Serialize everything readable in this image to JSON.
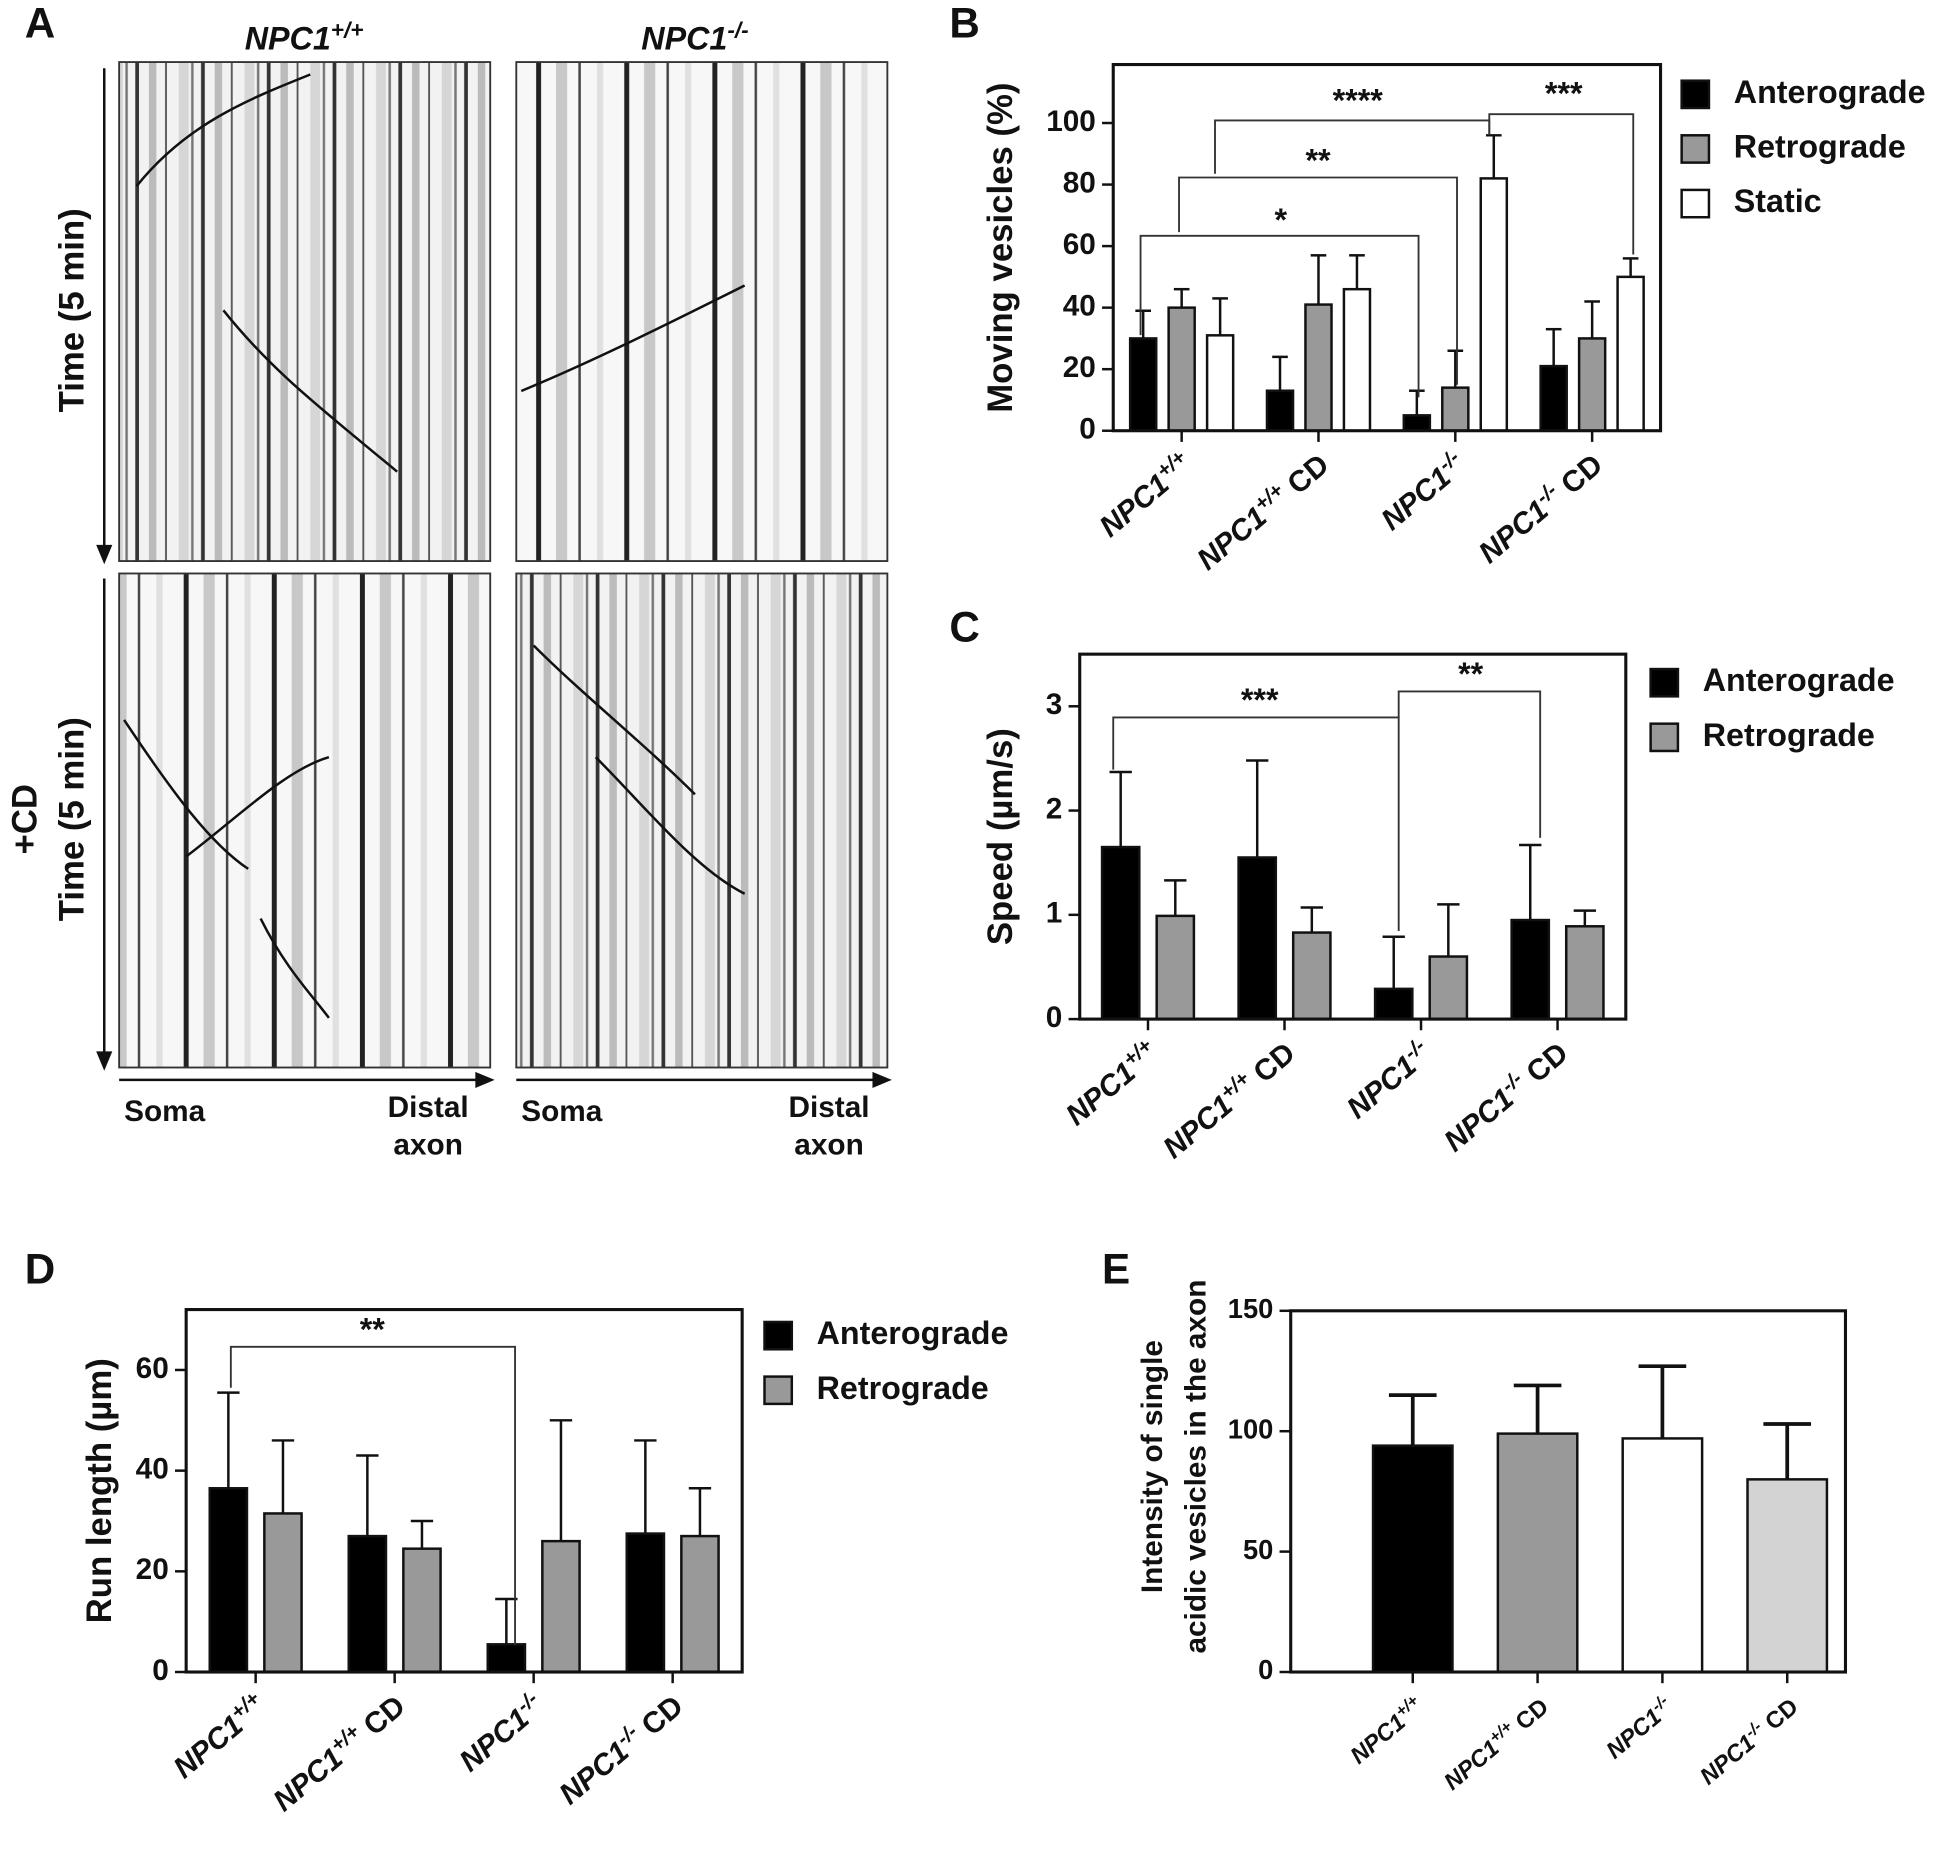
{
  "kymographs": {
    "panel": "A",
    "columns": [
      "NPC1+/+",
      "NPC1-/-"
    ],
    "row_labels": [
      "Time (5 min)",
      "Time (5 min)"
    ],
    "treatment": "+CD",
    "x_axis": [
      {
        "start": "Soma",
        "end": [
          "Distal",
          "axon"
        ]
      },
      {
        "start": "Soma",
        "end": [
          "Distal",
          "axon"
        ]
      }
    ]
  },
  "chart_data": [
    {
      "type": "bar",
      "panel": "B",
      "y_label": "Moving vesicles (%)",
      "categories": [
        "NPC1+/+",
        "NPC1+/+ CD",
        "NPC1-/-",
        "NPC1-/- CD"
      ],
      "series": [
        {
          "name": "Anterograde",
          "color": "#000000",
          "values": [
            30,
            13,
            5,
            21
          ],
          "errors": [
            9,
            11,
            8,
            12
          ]
        },
        {
          "name": "Retrograde",
          "color": "#999999",
          "values": [
            40,
            41,
            14,
            30
          ],
          "errors": [
            6,
            16,
            12,
            12
          ]
        },
        {
          "name": "Static",
          "color": "#ffffff",
          "values": [
            31,
            46,
            82,
            50
          ],
          "errors": [
            12,
            11,
            14,
            6
          ]
        }
      ],
      "ylim": [
        0,
        119
      ],
      "yticks": [
        0,
        20,
        40,
        60,
        80,
        100
      ],
      "legend": "outside right",
      "annotations": [
        "*",
        "**",
        "****",
        "***"
      ]
    },
    {
      "type": "bar",
      "panel": "C",
      "y_label": "Speed (µm/s)",
      "categories": [
        "NPC1+/+",
        "NPC1+/+ CD",
        "NPC1-/-",
        "NPC1-/- CD"
      ],
      "series": [
        {
          "name": "Anterograde",
          "color": "#000000",
          "values": [
            1.65,
            1.55,
            0.29,
            0.95
          ],
          "errors": [
            0.72,
            0.93,
            0.5,
            0.72
          ]
        },
        {
          "name": "Retrograde",
          "color": "#999999",
          "values": [
            0.99,
            0.83,
            0.6,
            0.89
          ],
          "errors": [
            0.34,
            0.24,
            0.5,
            0.15
          ]
        }
      ],
      "ylim": [
        0,
        3.5
      ],
      "yticks": [
        0,
        1,
        2,
        3
      ],
      "legend": "outside right",
      "annotations": [
        "***",
        "**"
      ]
    },
    {
      "type": "bar",
      "panel": "D",
      "y_label": "Run length (µm)",
      "categories": [
        "NPC1+/+",
        "NPC1+/+ CD",
        "NPC1-/-",
        "NPC1-/- CD"
      ],
      "series": [
        {
          "name": "Anterograde",
          "color": "#000000",
          "values": [
            36.5,
            27,
            5.5,
            27.5
          ],
          "errors": [
            19,
            16,
            9,
            18.5
          ]
        },
        {
          "name": "Retrograde",
          "color": "#999999",
          "values": [
            31.5,
            24.5,
            26,
            27
          ],
          "errors": [
            14.5,
            5.5,
            24,
            9.5
          ]
        }
      ],
      "ylim": [
        0,
        72
      ],
      "yticks": [
        0,
        20,
        40,
        60
      ],
      "legend": "outside right",
      "annotations": [
        "**"
      ]
    },
    {
      "type": "bar",
      "panel": "E",
      "y_label": [
        "Intensity of single",
        "acidic vesicles in the axon"
      ],
      "categories": [
        "NPC1+/+",
        "NPC1+/+ CD",
        "NPC1-/-",
        "NPC1-/- CD"
      ],
      "values": [
        94,
        99,
        97,
        80
      ],
      "errors": [
        21,
        20,
        30,
        23
      ],
      "colors": [
        "#000000",
        "#999999",
        "#ffffff",
        "#d3d3d3"
      ],
      "ylim": [
        0,
        150
      ],
      "yticks": [
        0,
        50,
        100,
        150
      ]
    }
  ]
}
